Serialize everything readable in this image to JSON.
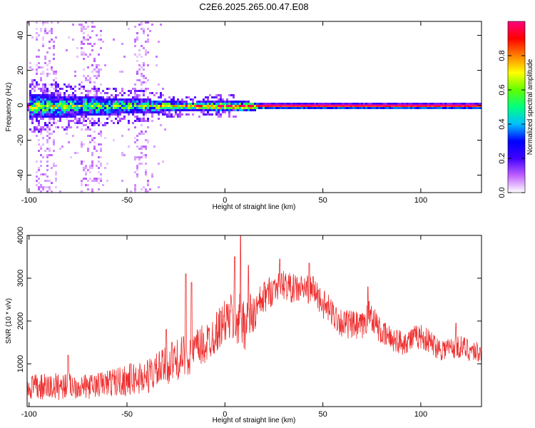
{
  "title": "C2E6.2025.265.00.47.E08",
  "chart_data": [
    {
      "type": "heatmap",
      "name": "spectrogram",
      "xlabel": "Height of straight line (km)",
      "ylabel": "Frequency (Hz)",
      "xlim": [
        -101,
        131
      ],
      "ylim": [
        -50,
        48
      ],
      "xticks": [
        -100,
        -50,
        0,
        50,
        100
      ],
      "xtick_labels": [
        "-100",
        "-50",
        "0",
        "50",
        "100"
      ],
      "yticks": [
        -40,
        -20,
        0,
        20,
        40
      ],
      "ytick_labels": [
        "-40",
        "-20",
        "0",
        "20",
        "40"
      ],
      "colorbar": {
        "label": "Normalized spectral amplitude",
        "range": [
          0,
          1
        ],
        "ticks": [
          0.0,
          0.2,
          0.4,
          0.6,
          0.8
        ],
        "tick_labels": [
          "0.0",
          "0.2",
          "0.4",
          "0.6",
          "0.8"
        ],
        "colors": [
          "#ffffff",
          "#c060ff",
          "#4000ff",
          "#0000ff",
          "#00c0ff",
          "#00ff80",
          "#60ff00",
          "#ffff00",
          "#ff8000",
          "#ff0000",
          "#ff0080"
        ]
      },
      "band_center_hz": 0,
      "band_profile": [
        {
          "x": -100,
          "halfwidth_hz": 7,
          "peak": 0.65
        },
        {
          "x": -80,
          "halfwidth_hz": 6,
          "peak": 0.6
        },
        {
          "x": -60,
          "halfwidth_hz": 5,
          "peak": 0.55
        },
        {
          "x": -40,
          "halfwidth_hz": 4,
          "peak": 0.6
        },
        {
          "x": -20,
          "halfwidth_hz": 2.5,
          "peak": 0.85
        },
        {
          "x": -5,
          "halfwidth_hz": 3,
          "peak": 0.9
        },
        {
          "x": 10,
          "halfwidth_hz": 3,
          "peak": 0.95
        },
        {
          "x": 20,
          "halfwidth_hz": 1.5,
          "peak": 1.0
        },
        {
          "x": 131,
          "halfwidth_hz": 1.5,
          "peak": 1.0
        }
      ],
      "noise_columns_km": [
        -95,
        -92,
        -88,
        -72,
        -68,
        -65,
        -45,
        -41
      ]
    },
    {
      "type": "line",
      "name": "snr",
      "xlabel": "Height of straight line (km)",
      "ylabel": "SNR (10 * v/v)",
      "xlim": [
        -101,
        131
      ],
      "ylim": [
        0,
        4000
      ],
      "xticks": [
        -100,
        -50,
        0,
        50,
        100
      ],
      "xtick_labels": [
        "-100",
        "-50",
        "0",
        "50",
        "100"
      ],
      "yticks": [
        1000,
        2000,
        3000,
        4000
      ],
      "ytick_labels": [
        "1000",
        "2000",
        "3000",
        "4000"
      ],
      "series": [
        {
          "name": "SNR",
          "color": "#ee3030",
          "envelope": [
            {
              "x": -101,
              "mean": 450,
              "spread": 300
            },
            {
              "x": -90,
              "mean": 450,
              "spread": 330
            },
            {
              "x": -80,
              "mean": 500,
              "spread": 320
            },
            {
              "x": -70,
              "mean": 460,
              "spread": 280
            },
            {
              "x": -60,
              "mean": 550,
              "spread": 320
            },
            {
              "x": -50,
              "mean": 620,
              "spread": 380
            },
            {
              "x": -40,
              "mean": 700,
              "spread": 420
            },
            {
              "x": -30,
              "mean": 950,
              "spread": 450
            },
            {
              "x": -20,
              "mean": 1200,
              "spread": 500
            },
            {
              "x": -10,
              "mean": 1450,
              "spread": 500
            },
            {
              "x": 0,
              "mean": 2000,
              "spread": 500
            },
            {
              "x": 5,
              "mean": 2100,
              "spread": 700
            },
            {
              "x": 10,
              "mean": 2000,
              "spread": 700
            },
            {
              "x": 15,
              "mean": 2150,
              "spread": 500
            },
            {
              "x": 20,
              "mean": 2550,
              "spread": 400
            },
            {
              "x": 28,
              "mean": 2900,
              "spread": 350
            },
            {
              "x": 35,
              "mean": 2750,
              "spread": 350
            },
            {
              "x": 45,
              "mean": 2750,
              "spread": 350
            },
            {
              "x": 50,
              "mean": 2400,
              "spread": 350
            },
            {
              "x": 60,
              "mean": 1950,
              "spread": 350
            },
            {
              "x": 70,
              "mean": 1850,
              "spread": 350
            },
            {
              "x": 74,
              "mean": 2200,
              "spread": 350
            },
            {
              "x": 80,
              "mean": 1700,
              "spread": 300
            },
            {
              "x": 90,
              "mean": 1500,
              "spread": 300
            },
            {
              "x": 100,
              "mean": 1650,
              "spread": 300
            },
            {
              "x": 110,
              "mean": 1350,
              "spread": 280
            },
            {
              "x": 120,
              "mean": 1400,
              "spread": 280
            },
            {
              "x": 131,
              "mean": 1250,
              "spread": 250
            }
          ],
          "spikes": [
            {
              "x": -80,
              "y": 1200
            },
            {
              "x": -30,
              "y": 1800
            },
            {
              "x": -27,
              "y": 1500
            },
            {
              "x": -20,
              "y": 3100
            },
            {
              "x": -17,
              "y": 2900
            },
            {
              "x": 5,
              "y": 3500
            },
            {
              "x": 8,
              "y": 4000
            },
            {
              "x": 12,
              "y": 3300
            },
            {
              "x": 28,
              "y": 3450
            },
            {
              "x": 43,
              "y": 3350
            },
            {
              "x": 73,
              "y": 2800
            },
            {
              "x": 118,
              "y": 1950
            }
          ]
        }
      ]
    }
  ]
}
